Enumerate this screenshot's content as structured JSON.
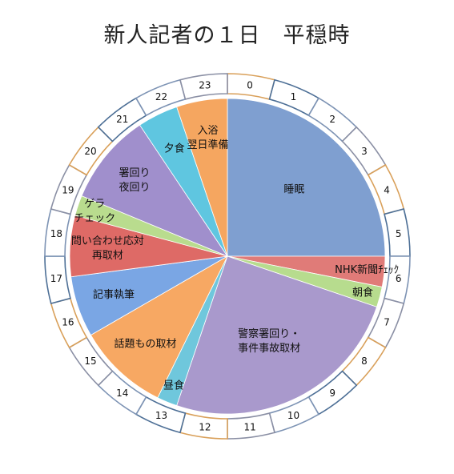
{
  "chart_data": {
    "type": "pie",
    "title": "新人記者の１日　平穏時",
    "units": "hours",
    "hour_labels": [
      "0",
      "1",
      "2",
      "3",
      "4",
      "5",
      "6",
      "7",
      "8",
      "9",
      "10",
      "11",
      "12",
      "13",
      "14",
      "15",
      "16",
      "17",
      "18",
      "19",
      "20",
      "21",
      "22",
      "23"
    ],
    "slices": [
      {
        "label": "睡眠",
        "lines": [
          "睡眠"
        ],
        "start": 0,
        "end": 6.0,
        "color": "#7f9fd0"
      },
      {
        "label": "NHK新聞チェック",
        "lines": [
          "NHK新聞ﾁｪｯｸ"
        ],
        "start": 6.0,
        "end": 6.75,
        "color": "#e07b78"
      },
      {
        "label": "朝食",
        "lines": [
          "朝食"
        ],
        "start": 6.75,
        "end": 7.25,
        "color": "#b7dc8e"
      },
      {
        "label": "警察署回り・事件事故取材",
        "lines": [
          "警察署回り・",
          "事件事故取材"
        ],
        "start": 7.25,
        "end": 13.25,
        "color": "#a999cc"
      },
      {
        "label": "昼食",
        "lines": [
          "昼食"
        ],
        "start": 13.25,
        "end": 13.75,
        "color": "#6fc7dc"
      },
      {
        "label": "話題もの取材",
        "lines": [
          "話題もの取材"
        ],
        "start": 13.75,
        "end": 16.0,
        "color": "#f7a863"
      },
      {
        "label": "記事執筆",
        "lines": [
          "記事執筆"
        ],
        "start": 16.0,
        "end": 17.5,
        "color": "#7aa6e4"
      },
      {
        "label": "問い合わせ応対 再取材",
        "lines": [
          "問い合わせ応対",
          "再取材"
        ],
        "start": 17.5,
        "end": 19.0,
        "color": "#de6a66"
      },
      {
        "label": "ゲラチェック",
        "lines": [
          "ゲラ",
          "チェック"
        ],
        "start": 19.0,
        "end": 19.5,
        "color": "#b9dc8e"
      },
      {
        "label": "署回り 夜回り",
        "lines": [
          "署回り",
          "夜回り"
        ],
        "start": 19.5,
        "end": 21.75,
        "color": "#a08fcc"
      },
      {
        "label": "夕食",
        "lines": [
          "夕食"
        ],
        "start": 21.75,
        "end": 22.75,
        "color": "#5fc6e0"
      },
      {
        "label": "入浴 翌日準備",
        "lines": [
          "入浴",
          "翌日準備"
        ],
        "start": 22.75,
        "end": 24.0,
        "color": "#f5a660"
      }
    ],
    "legend": "none",
    "grid": false
  }
}
